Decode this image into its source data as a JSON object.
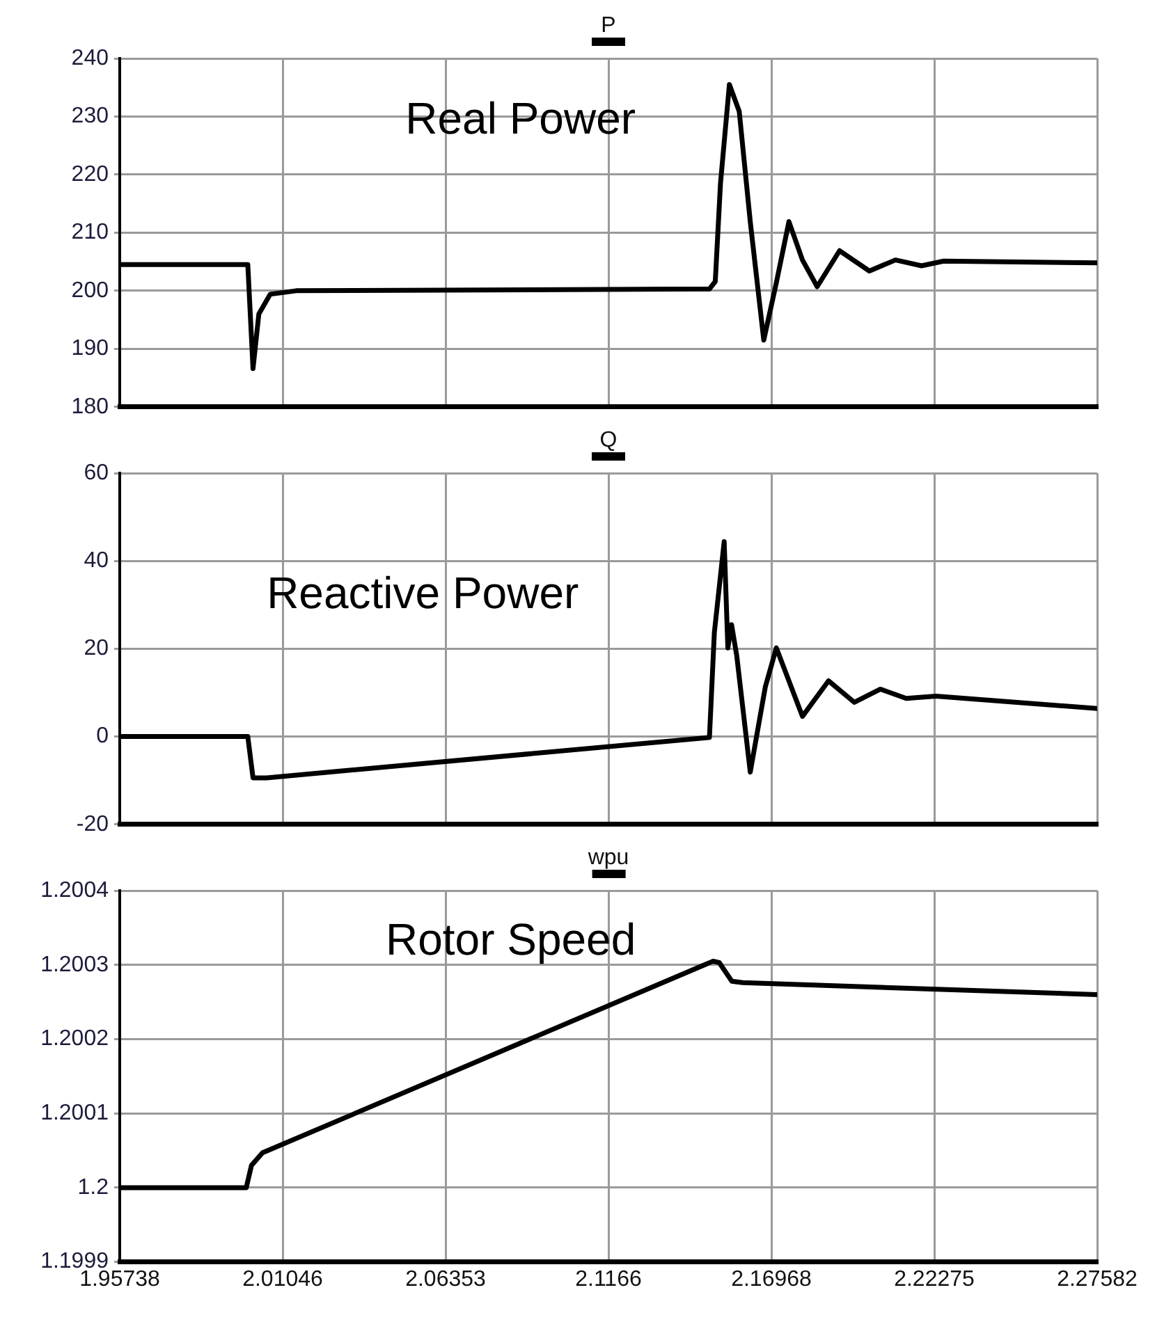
{
  "chart_data": [
    {
      "type": "line",
      "legend": "top",
      "grid": true,
      "marker": "none",
      "line_style": "solid",
      "tick_labels": "y",
      "annotations": [
        "Real Power"
      ],
      "xlim": [
        1.95738,
        2.27582
      ],
      "xticks": [
        1.95738,
        2.01046,
        2.06353,
        2.1166,
        2.16968,
        2.22275,
        2.27582
      ],
      "ylim": [
        180,
        240
      ],
      "yticks": [
        180,
        190,
        200,
        210,
        220,
        230,
        240
      ],
      "series": [
        {
          "name": "P",
          "color": "#000000",
          "x": [
            1.95738,
            1.9991,
            2.0008,
            2.0027,
            2.0064,
            2.0149,
            2.1495,
            2.1514,
            2.1531,
            2.156,
            2.1592,
            2.1628,
            2.1672,
            2.1713,
            2.1754,
            2.1798,
            2.1846,
            2.1919,
            2.2016,
            2.2101,
            2.2186,
            2.2258,
            2.27582
          ],
          "values": [
            204.5,
            204.5,
            186.6,
            196,
            199.4,
            200,
            200.3,
            201.6,
            218.5,
            235.5,
            230.9,
            211.9,
            191.5,
            201.4,
            211.9,
            205.3,
            200.7,
            206.9,
            203.4,
            205.3,
            204.3,
            205.1,
            204.8
          ]
        }
      ]
    },
    {
      "type": "line",
      "legend": "top",
      "grid": true,
      "marker": "none",
      "line_style": "solid",
      "tick_labels": "y",
      "annotations": [
        "Reactive Power"
      ],
      "xlim": [
        1.95738,
        2.27582
      ],
      "xticks": [
        1.95738,
        2.01046,
        2.06353,
        2.1166,
        2.16968,
        2.22275,
        2.27582
      ],
      "ylim": [
        -20,
        60
      ],
      "yticks": [
        -20,
        0,
        20,
        40,
        60
      ],
      "series": [
        {
          "name": "Q",
          "color": "#000000",
          "x": [
            1.95738,
            1.9991,
            2.0008,
            2.0052,
            2.1495,
            2.1511,
            2.1543,
            2.1555,
            2.1567,
            2.1584,
            2.1628,
            2.1677,
            2.1713,
            2.1798,
            2.1883,
            2.1967,
            2.2052,
            2.2136,
            2.2233,
            2.27582
          ],
          "values": [
            0,
            0,
            -9.4,
            -9.4,
            -0.2,
            23.7,
            44.4,
            20.2,
            25.5,
            18.4,
            -8.1,
            11.3,
            20.2,
            4.6,
            12.7,
            7.8,
            10.8,
            8.7,
            9.2,
            6.4
          ]
        }
      ]
    },
    {
      "type": "line",
      "legend": "top",
      "grid": true,
      "marker": "none",
      "line_style": "solid",
      "annotations": [
        "Rotor Speed"
      ],
      "xlim": [
        1.95738,
        2.27582
      ],
      "xticks": [
        1.95738,
        2.01046,
        2.06353,
        2.1166,
        2.16968,
        2.22275,
        2.27582
      ],
      "ylim": [
        1.1999,
        1.2004
      ],
      "yticks": [
        1.1999,
        1.2,
        1.2001,
        1.2002,
        1.2003,
        1.2004
      ],
      "series": [
        {
          "name": "wpu",
          "color": "#000000",
          "x": [
            1.95738,
            1.9986,
            2.0003,
            2.0039,
            2.1507,
            2.1527,
            2.1568,
            2.1604,
            2.27582
          ],
          "values": [
            1.2,
            1.2,
            1.20003,
            1.200047,
            1.200305,
            1.200303,
            1.200278,
            1.200276,
            1.20026
          ]
        }
      ]
    }
  ]
}
